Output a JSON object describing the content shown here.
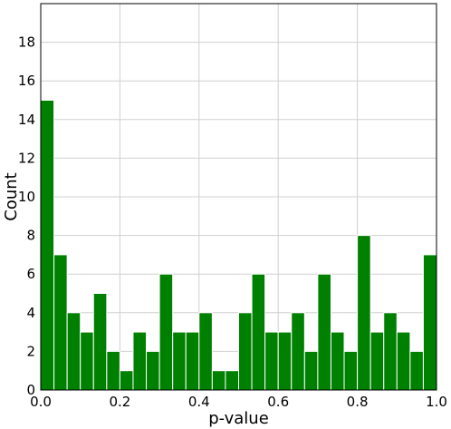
{
  "chart_data": {
    "type": "bar",
    "title": "",
    "xlabel": "p-value",
    "ylabel": "Count",
    "xlim": [
      0.0,
      1.0
    ],
    "ylim": [
      0,
      20
    ],
    "bin_width": 0.0333,
    "x_ticks": [
      "0.0",
      "0.2",
      "0.4",
      "0.6",
      "0.8",
      "1.0"
    ],
    "y_ticks": [
      "0",
      "2",
      "4",
      "6",
      "8",
      "10",
      "12",
      "14",
      "16",
      "18"
    ],
    "values": [
      15,
      7,
      4,
      3,
      5,
      2,
      1,
      3,
      2,
      6,
      3,
      3,
      4,
      1,
      1,
      4,
      6,
      3,
      3,
      4,
      2,
      6,
      3,
      2,
      8,
      3,
      4,
      3,
      2,
      7
    ],
    "grid": true,
    "bar_color": "#008000",
    "bar_edge_color": "#ffffff"
  }
}
